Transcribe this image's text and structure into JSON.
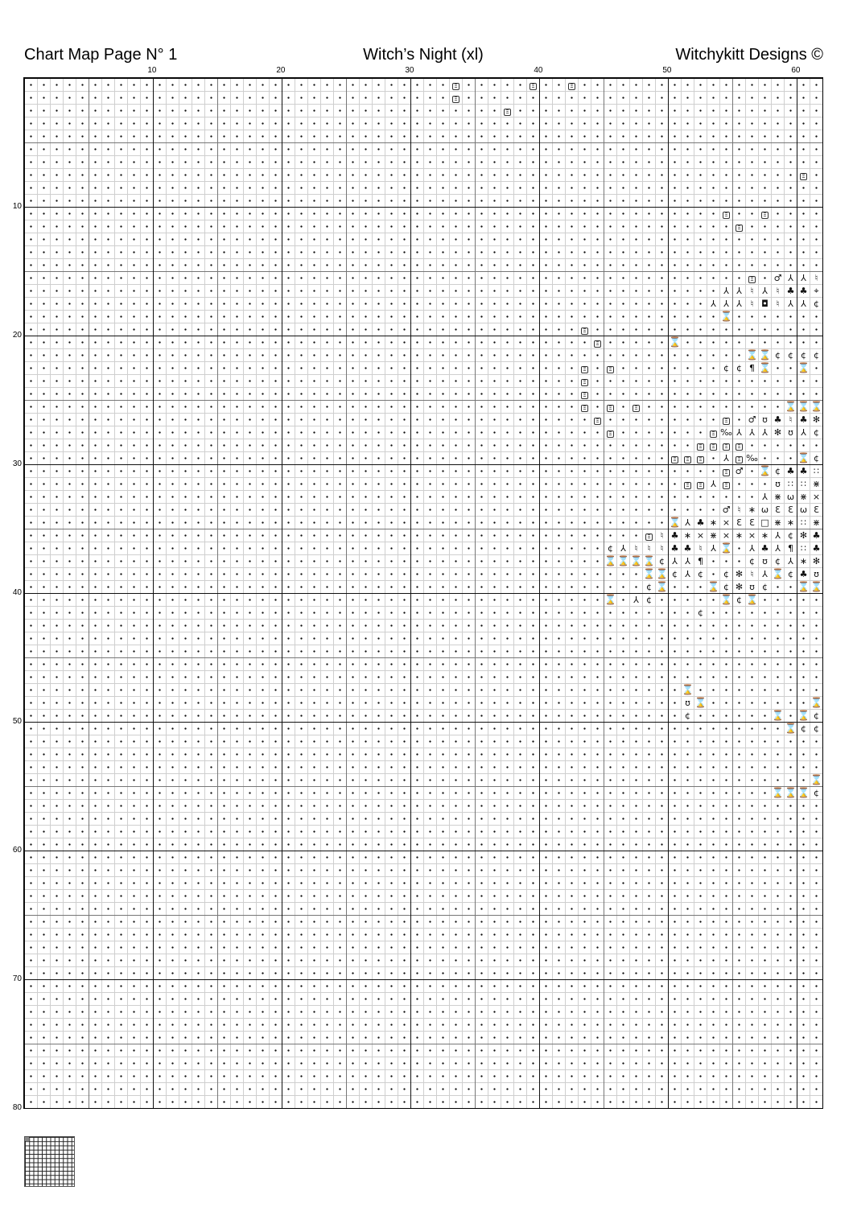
{
  "header": {
    "page_label": "Chart Map Page N° 1",
    "title": "Witch’s Night (xl)",
    "designer": "Witchykitt Designs ©"
  },
  "grid": {
    "columns": 62,
    "rows": 80,
    "column_labels": [
      "10",
      "20",
      "30",
      "40",
      "50",
      "60"
    ],
    "row_labels": [
      "10",
      "20",
      "30",
      "40",
      "50",
      "60",
      "70",
      "80"
    ],
    "empty_mark": "dot",
    "legend": {
      "E": "Ξ",
      "Y": "⅄",
      "N": "♮",
      "C": "♣",
      "c": "¢",
      "H": "⌛",
      "o": "♂",
      "U": "ʊ",
      "B": "¶",
      "e": "Ɛ",
      "m": "ω",
      "x": "×",
      "a": "∗",
      "q": "□",
      "k": "∷",
      "K": "⋇",
      "S": "✻",
      "P": "‰",
      "Q": "◘",
      "T": "⌖"
    },
    "stitches": {
      "1": "34E 40E 43E",
      "2": "34E",
      "3": "38E",
      "8": "61E",
      "11": "55E 58E",
      "12": "56E",
      "16": "57E 59o 60Y 61Y 62N",
      "17": "55Y 56Y 57N 58Y 59N 60C 61C 62T",
      "18": "54Y 55Y 56Y 57N 58Q 59N 60Y 61Y 62c",
      "19": "55H",
      "20": "44E",
      "21": "45E 51H",
      "22": "57H 58H 59c 60c 61c 62c",
      "23": "44E 46E 55c 56c 57B 58H 61H",
      "24": "44E",
      "25": "44E",
      "26": "44E 46E 48E 60H 61H 62H",
      "27": "45E 55E 57o 58U 59C 60N 61C 62S",
      "28": "46E 54E 55P 56Y 57Y 58Y 59S 60U 61Y 62c",
      "29": "53E 54E 55E 56E",
      "30": "51E 52E 53E 55Y 56E 57P 61H 62c",
      "31": "55E 56o 58H 59c 60C 61C 62k",
      "32": "52E 53E 54Y 55E 59U 60k 61k 62K",
      "33": "58Y 59K 60m 61K 62x",
      "34": "55o 56N 57a 58m 59e 60e 61m 62e",
      "35": "51H 52Y 53C 54a 55x 56e 57e 58q 59K 60a 61k 62K",
      "36": "49E 50N 51C 52a 53x 54K 55x 56a 57x 58a 59Y 60c 61S 62C",
      "37": "46c 47Y 48N 49N 50N 51C 52C 53N 54Y 55H 57Y 58C 59Y 60B 61k 62C",
      "38": "46H 47H 48H 49H 50c 51Y 52Y 53B 57c 58U 59c 60Y 61a 62S",
      "39": "49H 50H 51c 52Y 53c 55c 56S 57N 58Y 59H 60c 61C 62U",
      "40": "49c 50H 54H 55c 56S 57U 58c 61H 62H",
      "41": "46H 48Y 49c 55H 56c 57H",
      "42": "53c",
      "48": "52H",
      "49": "52U 53H 62H",
      "50": "52c 59H 61H 62c",
      "51": "60H 61c 62c",
      "55": "62H",
      "56": "59H 60H 61H 62c"
    }
  },
  "page_map": {
    "current_page": 1,
    "highlight_color": "#888888"
  }
}
